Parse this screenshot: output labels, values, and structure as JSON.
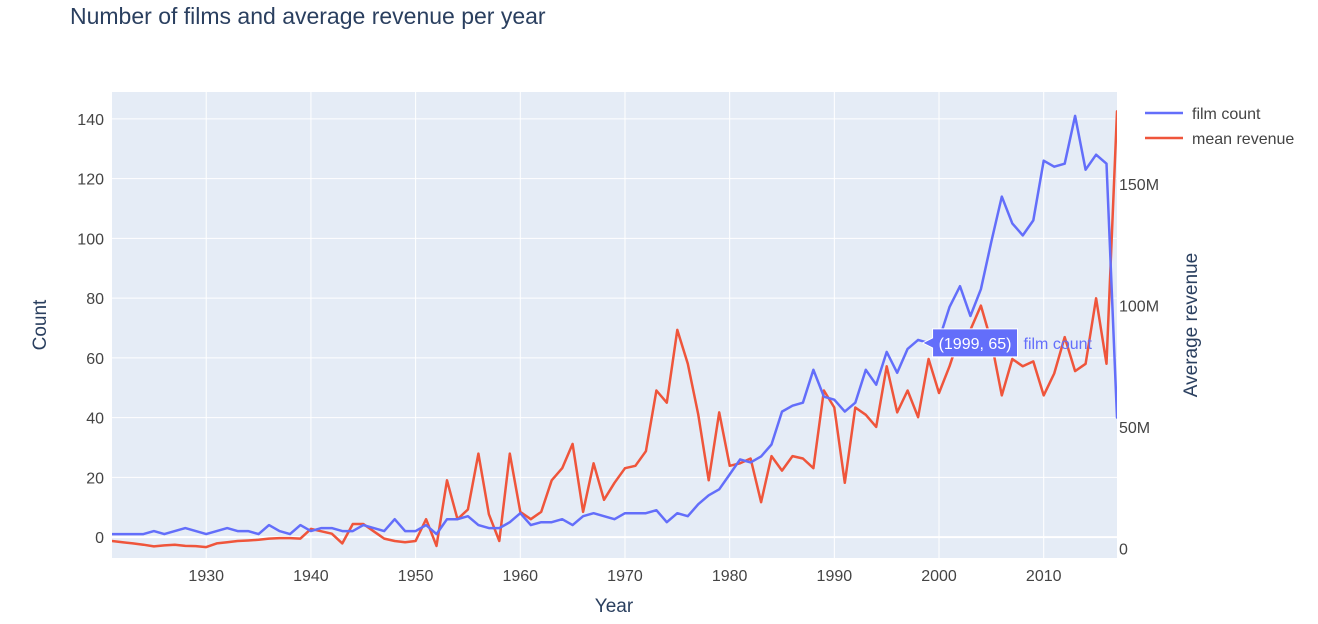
{
  "chart_data": {
    "type": "line",
    "title": "Number of films and average revenue per year",
    "xlabel": "Year",
    "ylabel": "Count",
    "y2label": "Average revenue",
    "xlim": [
      1921,
      2017
    ],
    "ylim": [
      -7,
      149
    ],
    "y2lim": [
      -4000000,
      188000000
    ],
    "xticks": [
      1930,
      1940,
      1950,
      1960,
      1970,
      1980,
      1990,
      2000,
      2010
    ],
    "yticks": [
      0,
      20,
      40,
      60,
      80,
      100,
      120,
      140
    ],
    "y2ticks": [
      0,
      50000000,
      100000000,
      150000000
    ],
    "y2ticklabels": [
      "0",
      "50M",
      "100M",
      "150M"
    ],
    "grid": true,
    "legend_position": "top-right",
    "hover_label": {
      "text": "(1999, 65)",
      "series": "film count",
      "x": 1999,
      "y": 65
    },
    "series": [
      {
        "name": "film count",
        "axis": "y",
        "color": "#636efa",
        "x": [
          1921,
          1922,
          1923,
          1924,
          1925,
          1926,
          1927,
          1928,
          1929,
          1930,
          1931,
          1932,
          1933,
          1934,
          1935,
          1936,
          1937,
          1938,
          1939,
          1940,
          1941,
          1942,
          1943,
          1944,
          1945,
          1946,
          1947,
          1948,
          1949,
          1950,
          1951,
          1952,
          1953,
          1954,
          1955,
          1956,
          1957,
          1958,
          1959,
          1960,
          1961,
          1962,
          1963,
          1964,
          1965,
          1966,
          1967,
          1968,
          1969,
          1970,
          1971,
          1972,
          1973,
          1974,
          1975,
          1976,
          1977,
          1978,
          1979,
          1980,
          1981,
          1982,
          1983,
          1984,
          1985,
          1986,
          1987,
          1988,
          1989,
          1990,
          1991,
          1992,
          1993,
          1994,
          1995,
          1996,
          1997,
          1998,
          1999,
          2000,
          2001,
          2002,
          2003,
          2004,
          2005,
          2006,
          2007,
          2008,
          2009,
          2010,
          2011,
          2012,
          2013,
          2014,
          2015,
          2016,
          2017
        ],
        "values": [
          1,
          1,
          1,
          1,
          2,
          1,
          2,
          3,
          2,
          1,
          2,
          3,
          2,
          2,
          1,
          4,
          2,
          1,
          4,
          2,
          3,
          3,
          2,
          2,
          4,
          3,
          2,
          6,
          2,
          2,
          4,
          1,
          6,
          6,
          7,
          4,
          3,
          3,
          5,
          8,
          4,
          5,
          5,
          6,
          4,
          7,
          8,
          7,
          6,
          8,
          8,
          8,
          9,
          5,
          8,
          7,
          11,
          14,
          16,
          21,
          26,
          25,
          27,
          31,
          42,
          44,
          45,
          56,
          47,
          46,
          42,
          45,
          56,
          51,
          62,
          55,
          63,
          66,
          65,
          66,
          77,
          84,
          74,
          83,
          99,
          114,
          105,
          101,
          106,
          126,
          124,
          125,
          141,
          123,
          128,
          125,
          40
        ]
      },
      {
        "name": "mean revenue",
        "axis": "y2",
        "color": "#ef553b",
        "x": [
          1921,
          1922,
          1923,
          1924,
          1925,
          1926,
          1927,
          1928,
          1929,
          1930,
          1931,
          1932,
          1933,
          1934,
          1935,
          1936,
          1937,
          1938,
          1939,
          1940,
          1941,
          1942,
          1943,
          1944,
          1945,
          1946,
          1947,
          1948,
          1949,
          1950,
          1951,
          1952,
          1953,
          1954,
          1955,
          1956,
          1957,
          1958,
          1959,
          1960,
          1961,
          1962,
          1963,
          1964,
          1965,
          1966,
          1967,
          1968,
          1969,
          1970,
          1971,
          1972,
          1973,
          1974,
          1975,
          1976,
          1977,
          1978,
          1979,
          1980,
          1981,
          1982,
          1983,
          1984,
          1985,
          1986,
          1987,
          1988,
          1989,
          1990,
          1991,
          1992,
          1993,
          1994,
          1995,
          1996,
          1997,
          1998,
          1999,
          2000,
          2001,
          2002,
          2003,
          2004,
          2005,
          2006,
          2007,
          2008,
          2009,
          2010,
          2011,
          2012,
          2013,
          2014,
          2015,
          2016,
          2017
        ],
        "values": [
          3000000,
          2500000,
          2000000,
          1500000,
          800000,
          1200000,
          1500000,
          1000000,
          900000,
          500000,
          2000000,
          2500000,
          3000000,
          3200000,
          3500000,
          4000000,
          4200000,
          4200000,
          4000000,
          8000000,
          7000000,
          6000000,
          2000000,
          10000000,
          10000000,
          7000000,
          4000000,
          3000000,
          2500000,
          3000000,
          12000000,
          1000000,
          28000000,
          12000000,
          16000000,
          39000000,
          14000000,
          3000000,
          39000000,
          15000000,
          12000000,
          15000000,
          28000000,
          33000000,
          43000000,
          15000000,
          35000000,
          20000000,
          27000000,
          33000000,
          34000000,
          40000000,
          65000000,
          60000000,
          90000000,
          76000000,
          55000000,
          28000000,
          56000000,
          34000000,
          35000000,
          37000000,
          19000000,
          38000000,
          32000000,
          38000000,
          37000000,
          33000000,
          65000000,
          58000000,
          27000000,
          58000000,
          55000000,
          50000000,
          75000000,
          56000000,
          65000000,
          54000000,
          78000000,
          64000000,
          75000000,
          88000000,
          90000000,
          100000000,
          85000000,
          63000000,
          78000000,
          75000000,
          77000000,
          63000000,
          72000000,
          87000000,
          73000000,
          76000000,
          103000000,
          76000000,
          180000000
        ]
      }
    ]
  }
}
